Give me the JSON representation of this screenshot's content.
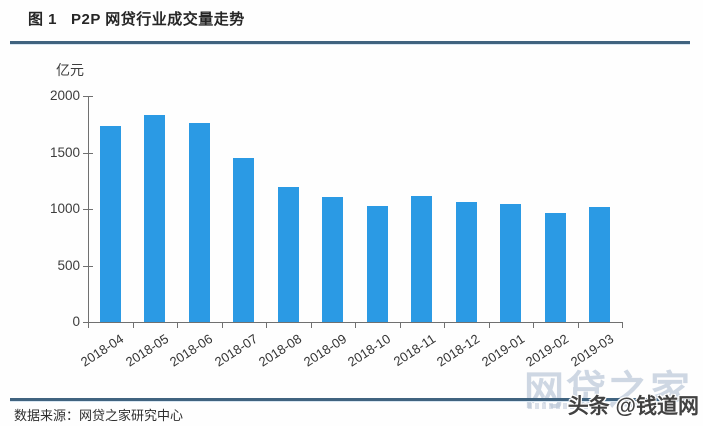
{
  "figure": {
    "title": "图 1   P2P 网贷行业成交量走势",
    "unit_label": "亿元",
    "source": "数据来源：网贷之家研究中心",
    "watermark": "网贷之家",
    "byline": "头条 @钱道网"
  },
  "colors": {
    "bar": "#2b9ae4",
    "divider": "#40637f",
    "axis": "#707070",
    "watermark": "#c3cedd",
    "title_text": "#262626"
  },
  "chart_data": {
    "type": "bar",
    "title": "P2P 网贷行业成交量走势",
    "categories": [
      "2018-04",
      "2018-05",
      "2018-06",
      "2018-07",
      "2018-08",
      "2018-09",
      "2018-10",
      "2018-11",
      "2018-12",
      "2019-01",
      "2019-02",
      "2019-03"
    ],
    "values": [
      1731,
      1828,
      1757,
      1447,
      1193,
      1108,
      1023,
      1113,
      1060,
      1043,
      964,
      1022
    ],
    "xlabel": "",
    "ylabel": "亿元",
    "ylim": [
      0,
      2000
    ],
    "yticks": [
      0,
      500,
      1000,
      1500,
      2000
    ],
    "grid": false,
    "legend": false
  }
}
